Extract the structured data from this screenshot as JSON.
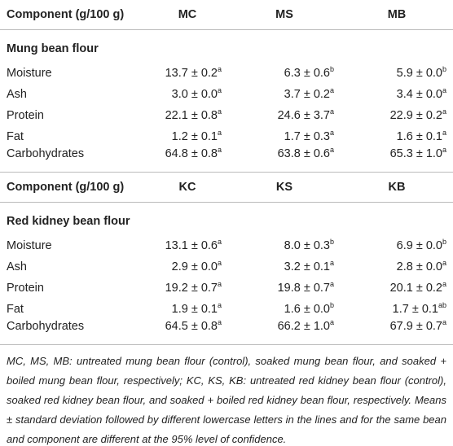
{
  "sections": [
    {
      "header": [
        "Component (g/100 g)",
        "MC",
        "MS",
        "MB"
      ],
      "title": "Mung bean flour",
      "rows": [
        {
          "label": "Moisture",
          "cells": [
            {
              "text": "13.7 ± 0.2",
              "sup": "a"
            },
            {
              "text": "6.3 ± 0.6",
              "sup": "b"
            },
            {
              "text": "5.9 ± 0.0",
              "sup": "b"
            }
          ]
        },
        {
          "label": "Ash",
          "cells": [
            {
              "text": "3.0 ± 0.0",
              "sup": "a"
            },
            {
              "text": "3.7 ± 0.2",
              "sup": "a"
            },
            {
              "text": "3.4 ± 0.0",
              "sup": "a"
            }
          ]
        },
        {
          "label": "Protein",
          "cells": [
            {
              "text": "22.1 ± 0.8",
              "sup": "a"
            },
            {
              "text": "24.6 ± 3.7",
              "sup": "a"
            },
            {
              "text": "22.9 ± 0.2",
              "sup": "a"
            }
          ]
        },
        {
          "label": "Fat",
          "cells": [
            {
              "text": "1.2 ± 0.1",
              "sup": "a"
            },
            {
              "text": "1.7 ± 0.3",
              "sup": "a"
            },
            {
              "text": "1.6 ± 0.1",
              "sup": "a"
            }
          ]
        },
        {
          "label": "Carbohydrates",
          "cells": [
            {
              "text": "64.8 ± 0.8",
              "sup": "a"
            },
            {
              "text": "63.8 ± 0.6",
              "sup": "a"
            },
            {
              "text": "65.3 ± 1.0",
              "sup": "a"
            }
          ]
        }
      ]
    },
    {
      "header": [
        "Component (g/100 g)",
        "KC",
        "KS",
        "KB"
      ],
      "title": "Red kidney bean flour",
      "rows": [
        {
          "label": "Moisture",
          "cells": [
            {
              "text": "13.1 ± 0.6",
              "sup": "a"
            },
            {
              "text": "8.0 ± 0.3",
              "sup": "b"
            },
            {
              "text": "6.9 ± 0.0",
              "sup": "b"
            }
          ]
        },
        {
          "label": "Ash",
          "cells": [
            {
              "text": "2.9 ± 0.0",
              "sup": "a"
            },
            {
              "text": "3.2 ± 0.1",
              "sup": "a"
            },
            {
              "text": "2.8 ± 0.0",
              "sup": "a"
            }
          ]
        },
        {
          "label": "Protein",
          "cells": [
            {
              "text": "19.2 ± 0.7",
              "sup": "a"
            },
            {
              "text": "19.8 ± 0.7",
              "sup": "a"
            },
            {
              "text": "20.1 ± 0.2",
              "sup": "a"
            }
          ]
        },
        {
          "label": "Fat",
          "cells": [
            {
              "text": "1.9 ± 0.1",
              "sup": "a"
            },
            {
              "text": "1.6 ± 0.0",
              "sup": "b"
            },
            {
              "text": "1.7 ± 0.1",
              "sup": "ab"
            }
          ]
        },
        {
          "label": "Carbohydrates",
          "cells": [
            {
              "text": "64.5 ± 0.8",
              "sup": "a"
            },
            {
              "text": "66.2 ± 1.0",
              "sup": "a"
            },
            {
              "text": "67.9 ± 0.7",
              "sup": "a"
            }
          ]
        }
      ]
    }
  ],
  "footnote": "MC, MS, MB: untreated mung bean flour (control), soaked mung bean flour, and soaked + boiled mung bean flour, respectively; KC, KS, KB: untreated red kidney bean flour (control), soaked red kidney bean flour, and soaked + boiled red kidney bean flour, respectively. Means ± standard deviation followed by different lowercase letters in the lines and for the same bean and component are different at the 95% level of confidence."
}
